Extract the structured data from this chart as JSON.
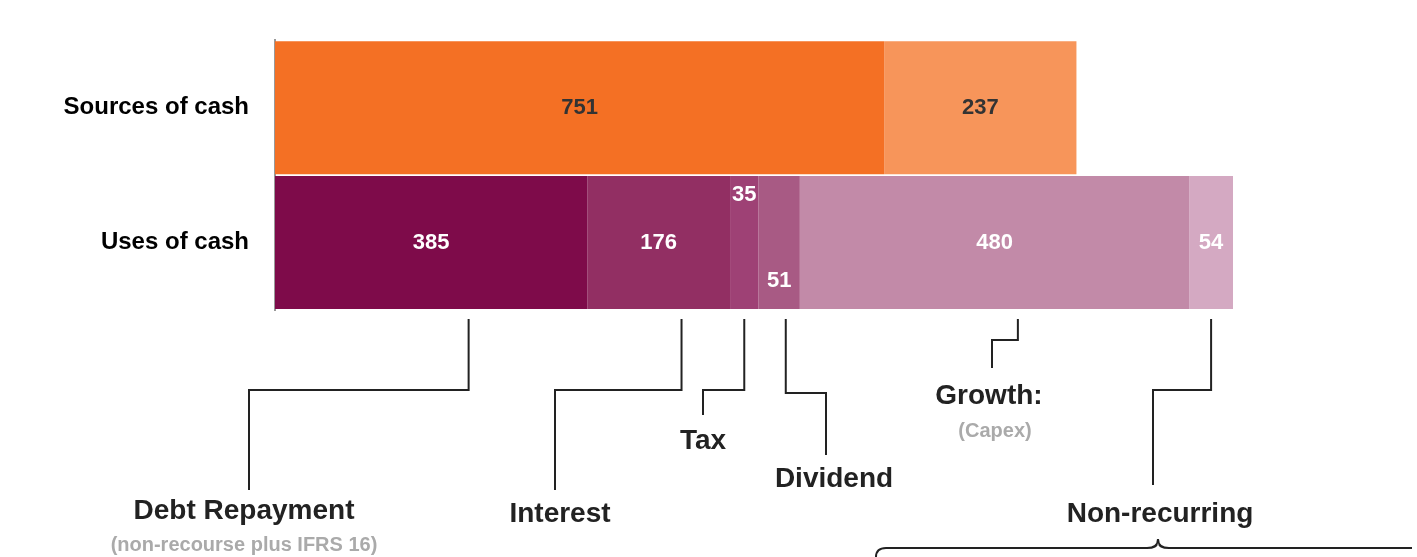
{
  "chart_data": {
    "type": "bar",
    "orientation": "horizontal",
    "stacked": true,
    "data_labels": true,
    "categories": [
      "Sources of cash",
      "Uses of cash"
    ],
    "series": [
      {
        "color": "#f47024",
        "values": [
          751,
          null
        ]
      },
      {
        "color": "#f7955a",
        "values": [
          237,
          null
        ]
      },
      {
        "color": "#7e0b4a",
        "values": [
          null,
          385
        ]
      },
      {
        "color": "#922f63",
        "values": [
          null,
          176
        ]
      },
      {
        "color": "#9e4175",
        "values": [
          null,
          35
        ]
      },
      {
        "color": "#a85a84",
        "values": [
          null,
          51
        ]
      },
      {
        "color": "#c28aa8",
        "values": [
          null,
          480
        ]
      },
      {
        "color": "#d4a9c2",
        "values": [
          null,
          54
        ]
      }
    ],
    "annotations": [
      "Debt Repayment",
      "(non-recourse plus IFRS 16)",
      "Interest",
      "Tax",
      "Dividend",
      "Growth:",
      "(Capex)",
      "Non-recurring"
    ]
  }
}
